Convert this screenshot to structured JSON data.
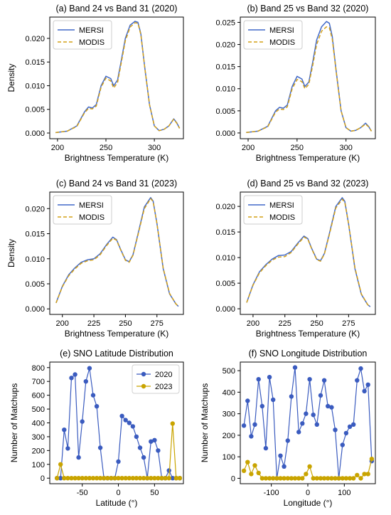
{
  "colors": {
    "mersi": "#4169c8",
    "modis": "#d4a017",
    "y2020": "#3a5bbf",
    "y2023": "#c9a400",
    "axis": "#000000"
  },
  "chart_data": [
    {
      "type": "line",
      "title": "(a) Band 24 vs Band 31 (2020)",
      "xlabel": "Brightness Temperature (K)",
      "ylabel": "Density",
      "xlim": [
        192,
        330
      ],
      "ylim": [
        -0.0012,
        0.0245
      ],
      "xticks": [
        200,
        250,
        300
      ],
      "yticks": [
        0.0,
        0.005,
        0.01,
        0.015,
        0.02
      ],
      "ytick_labels": [
        "0.000",
        "0.005",
        "0.010",
        "0.015",
        "0.020"
      ],
      "legend": "top-left",
      "series": [
        {
          "name": "MERSI",
          "style": "solid",
          "x": [
            198,
            210,
            220,
            228,
            232,
            236,
            240,
            245,
            250,
            255,
            258,
            262,
            266,
            270,
            275,
            280,
            283,
            286,
            290,
            295,
            300,
            305,
            310,
            315,
            320,
            323,
            326
          ],
          "y": [
            0.0001,
            0.0004,
            0.0015,
            0.0045,
            0.0055,
            0.0053,
            0.006,
            0.01,
            0.012,
            0.0115,
            0.01,
            0.0112,
            0.0155,
            0.02,
            0.0228,
            0.0236,
            0.0234,
            0.021,
            0.014,
            0.006,
            0.0015,
            0.0005,
            0.0008,
            0.0015,
            0.003,
            0.0022,
            0.001
          ]
        },
        {
          "name": "MODIS",
          "style": "dashed",
          "x": [
            198,
            210,
            220,
            228,
            232,
            236,
            240,
            245,
            250,
            255,
            258,
            262,
            266,
            270,
            275,
            280,
            283,
            286,
            290,
            295,
            300,
            305,
            310,
            315,
            320,
            323,
            326
          ],
          "y": [
            0.0001,
            0.0004,
            0.0014,
            0.0043,
            0.0052,
            0.0051,
            0.0057,
            0.0097,
            0.0116,
            0.011,
            0.0095,
            0.0107,
            0.015,
            0.0195,
            0.0224,
            0.0233,
            0.0232,
            0.0208,
            0.014,
            0.006,
            0.0015,
            0.0005,
            0.0008,
            0.0015,
            0.0029,
            0.0021,
            0.001
          ]
        }
      ]
    },
    {
      "type": "line",
      "title": "(b) Band 25 vs Band 32 (2020)",
      "xlabel": "Brightness Temperature (K)",
      "ylabel": "",
      "xlim": [
        192,
        330
      ],
      "ylim": [
        -0.0013,
        0.0262
      ],
      "xticks": [
        200,
        250,
        300
      ],
      "yticks": [
        0.0,
        0.005,
        0.01,
        0.015,
        0.02,
        0.025
      ],
      "ytick_labels": [
        "0.000",
        "0.005",
        "0.010",
        "0.015",
        "0.020",
        "0.025"
      ],
      "legend": "top-left",
      "series": [
        {
          "name": "MERSI",
          "style": "solid",
          "x": [
            198,
            210,
            220,
            228,
            232,
            236,
            240,
            245,
            250,
            255,
            258,
            262,
            266,
            270,
            275,
            280,
            283,
            286,
            290,
            295,
            300,
            305,
            310,
            315,
            320,
            323,
            326
          ],
          "y": [
            0.0001,
            0.0004,
            0.0015,
            0.005,
            0.0058,
            0.0056,
            0.0063,
            0.0105,
            0.0128,
            0.0122,
            0.0105,
            0.0115,
            0.016,
            0.021,
            0.024,
            0.0252,
            0.0248,
            0.0218,
            0.014,
            0.005,
            0.0012,
            0.0004,
            0.0006,
            0.0012,
            0.0022,
            0.0015,
            0.0004
          ]
        },
        {
          "name": "MODIS",
          "style": "dashed",
          "x": [
            198,
            210,
            220,
            228,
            232,
            236,
            240,
            245,
            250,
            255,
            258,
            262,
            266,
            270,
            275,
            280,
            283,
            286,
            290,
            295,
            300,
            305,
            310,
            315,
            320,
            323,
            326
          ],
          "y": [
            0.0001,
            0.0004,
            0.0014,
            0.0047,
            0.0054,
            0.0053,
            0.0059,
            0.01,
            0.0121,
            0.0116,
            0.01,
            0.011,
            0.0153,
            0.02,
            0.023,
            0.024,
            0.0238,
            0.0212,
            0.0138,
            0.005,
            0.0012,
            0.0004,
            0.0006,
            0.0012,
            0.002,
            0.0014,
            0.0004
          ]
        }
      ]
    },
    {
      "type": "line",
      "title": "(c) Band 24 vs Band 31 (2023)",
      "xlabel": "Brightness Temperature (K)",
      "ylabel": "Density",
      "xlim": [
        190,
        296
      ],
      "ylim": [
        -0.0011,
        0.0233
      ],
      "xticks": [
        200,
        225,
        250,
        275
      ],
      "yticks": [
        0.0,
        0.005,
        0.01,
        0.015,
        0.02
      ],
      "ytick_labels": [
        "0.000",
        "0.005",
        "0.010",
        "0.015",
        "0.020"
      ],
      "legend": "top-left",
      "series": [
        {
          "name": "MERSI",
          "style": "solid",
          "x": [
            195,
            200,
            205,
            210,
            215,
            220,
            225,
            230,
            235,
            240,
            243,
            246,
            250,
            253,
            256,
            260,
            265,
            270,
            272,
            275,
            280,
            285,
            290,
            292
          ],
          "y": [
            0.0012,
            0.0045,
            0.0068,
            0.0082,
            0.0093,
            0.0098,
            0.01,
            0.011,
            0.0128,
            0.0143,
            0.0138,
            0.012,
            0.0098,
            0.0094,
            0.0108,
            0.015,
            0.0203,
            0.0222,
            0.0215,
            0.017,
            0.008,
            0.003,
            0.001,
            0.0005
          ]
        },
        {
          "name": "MODIS",
          "style": "dashed",
          "x": [
            195,
            200,
            205,
            210,
            215,
            220,
            225,
            230,
            235,
            240,
            243,
            246,
            250,
            253,
            256,
            260,
            265,
            270,
            272,
            275,
            280,
            285,
            290,
            292
          ],
          "y": [
            0.0012,
            0.0044,
            0.0066,
            0.008,
            0.0091,
            0.0096,
            0.0098,
            0.0108,
            0.0126,
            0.0141,
            0.0137,
            0.0119,
            0.0097,
            0.0093,
            0.0107,
            0.0148,
            0.02,
            0.022,
            0.0214,
            0.017,
            0.0081,
            0.0031,
            0.001,
            0.0005
          ]
        }
      ]
    },
    {
      "type": "line",
      "title": "(d) Band 25 vs Band 32 (2023)",
      "xlabel": "Brightness Temperature (K)",
      "ylabel": "",
      "xlim": [
        190,
        296
      ],
      "ylim": [
        -0.0011,
        0.0228
      ],
      "xticks": [
        200,
        225,
        250,
        275
      ],
      "yticks": [
        0.0,
        0.005,
        0.01,
        0.015,
        0.02
      ],
      "ytick_labels": [
        "0.000",
        "0.005",
        "0.010",
        "0.015",
        "0.020"
      ],
      "legend": "top-left",
      "series": [
        {
          "name": "MERSI",
          "style": "solid",
          "x": [
            195,
            200,
            205,
            210,
            215,
            220,
            225,
            230,
            235,
            240,
            243,
            246,
            250,
            253,
            256,
            260,
            265,
            270,
            272,
            275,
            280,
            285,
            290,
            292
          ],
          "y": [
            0.0012,
            0.0047,
            0.0072,
            0.0086,
            0.0097,
            0.0104,
            0.0105,
            0.0112,
            0.0128,
            0.0142,
            0.0137,
            0.0118,
            0.0097,
            0.0094,
            0.0108,
            0.0148,
            0.02,
            0.0217,
            0.021,
            0.0165,
            0.0078,
            0.0028,
            0.0008,
            0.0004
          ]
        },
        {
          "name": "MODIS",
          "style": "dashed",
          "x": [
            195,
            200,
            205,
            210,
            215,
            220,
            225,
            230,
            235,
            240,
            243,
            246,
            250,
            253,
            256,
            260,
            265,
            270,
            272,
            275,
            280,
            285,
            290,
            292
          ],
          "y": [
            0.0012,
            0.0046,
            0.007,
            0.0084,
            0.0095,
            0.0101,
            0.0102,
            0.011,
            0.0126,
            0.014,
            0.0136,
            0.0117,
            0.0096,
            0.0093,
            0.0107,
            0.0146,
            0.0197,
            0.0214,
            0.0208,
            0.0165,
            0.008,
            0.0029,
            0.0008,
            0.0004
          ]
        }
      ]
    },
    {
      "type": "line",
      "title": "(e) SNO Latitude Distribution",
      "xlabel": "Latitude (°)",
      "ylabel": "Number of Matchups",
      "xlim": [
        -95,
        90
      ],
      "ylim": [
        -40,
        840
      ],
      "xticks": [
        -50,
        0,
        50
      ],
      "yticks": [
        0,
        100,
        200,
        300,
        400,
        500,
        600,
        700,
        800
      ],
      "ytick_labels": [
        "0",
        "100",
        "200",
        "300",
        "400",
        "500",
        "600",
        "700",
        "800"
      ],
      "legend": "top-right",
      "markers": true,
      "series": [
        {
          "name": "2020",
          "color_key": "y2020",
          "x": [
            -85,
            -80,
            -75,
            -70,
            -65,
            -60,
            -55,
            -50,
            -45,
            -40,
            -35,
            -30,
            -25,
            -20,
            -15,
            -10,
            -5,
            0,
            5,
            10,
            15,
            20,
            25,
            30,
            35,
            40,
            45,
            50,
            55,
            60,
            65,
            70,
            75,
            80,
            85
          ],
          "y": [
            0,
            0,
            350,
            215,
            725,
            750,
            150,
            410,
            700,
            795,
            600,
            520,
            220,
            0,
            0,
            0,
            0,
            120,
            450,
            420,
            400,
            375,
            300,
            220,
            150,
            0,
            265,
            275,
            200,
            0,
            0,
            55,
            0,
            0,
            0
          ]
        },
        {
          "name": "2023",
          "color_key": "y2023",
          "x": [
            -85,
            -80,
            -75,
            -70,
            -65,
            -60,
            -55,
            -50,
            -45,
            -40,
            -35,
            -30,
            -25,
            -20,
            -15,
            -10,
            -5,
            0,
            5,
            10,
            15,
            20,
            25,
            30,
            35,
            40,
            45,
            50,
            55,
            60,
            65,
            70,
            75,
            80,
            85
          ],
          "y": [
            0,
            100,
            0,
            0,
            0,
            0,
            0,
            0,
            0,
            0,
            0,
            0,
            0,
            0,
            0,
            0,
            0,
            0,
            0,
            0,
            0,
            0,
            0,
            0,
            0,
            0,
            0,
            0,
            0,
            0,
            0,
            0,
            395,
            0,
            0
          ]
        }
      ]
    },
    {
      "type": "line",
      "title": "(f) SNO Longitude Distribution",
      "xlabel": "Longitude (°)",
      "ylabel": "Number of Matchups",
      "xlim": [
        -185,
        185
      ],
      "ylim": [
        -25,
        540
      ],
      "xticks": [
        -100,
        0,
        100
      ],
      "yticks": [
        0,
        100,
        200,
        300,
        400,
        500
      ],
      "ytick_labels": [
        "0",
        "100",
        "200",
        "300",
        "400",
        "500"
      ],
      "legend": "none",
      "markers": true,
      "series": [
        {
          "name": "2020",
          "color_key": "y2020",
          "x": [
            -175,
            -165,
            -155,
            -145,
            -135,
            -125,
            -115,
            -105,
            -95,
            -85,
            -75,
            -65,
            -55,
            -45,
            -35,
            -25,
            -15,
            -5,
            5,
            15,
            25,
            35,
            45,
            55,
            65,
            75,
            85,
            95,
            105,
            115,
            125,
            135,
            145,
            155,
            165,
            175
          ],
          "y": [
            245,
            360,
            195,
            250,
            460,
            335,
            140,
            470,
            365,
            0,
            105,
            55,
            175,
            380,
            515,
            215,
            255,
            300,
            460,
            295,
            250,
            385,
            455,
            335,
            330,
            225,
            0,
            155,
            210,
            240,
            250,
            455,
            510,
            405,
            435,
            80
          ]
        },
        {
          "name": "2023",
          "color_key": "y2023",
          "x": [
            -175,
            -165,
            -155,
            -145,
            -135,
            -125,
            -115,
            -105,
            -95,
            -85,
            -75,
            -65,
            -55,
            -45,
            -35,
            -25,
            -15,
            -5,
            5,
            15,
            25,
            35,
            45,
            55,
            65,
            75,
            85,
            95,
            105,
            115,
            125,
            135,
            145,
            155,
            165,
            175
          ],
          "y": [
            35,
            75,
            20,
            60,
            25,
            0,
            0,
            0,
            0,
            0,
            0,
            0,
            0,
            0,
            0,
            0,
            0,
            20,
            55,
            0,
            0,
            0,
            0,
            0,
            0,
            0,
            0,
            0,
            0,
            0,
            0,
            15,
            0,
            20,
            20,
            90
          ]
        }
      ]
    }
  ]
}
